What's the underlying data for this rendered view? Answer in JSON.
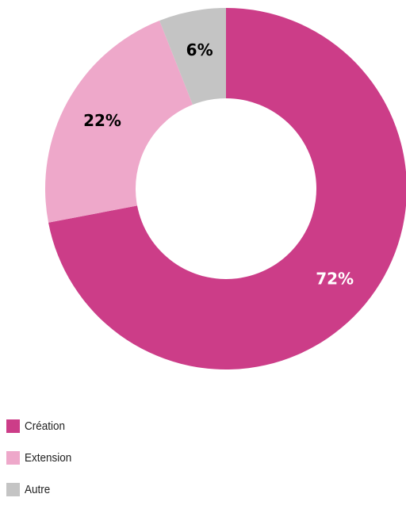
{
  "chart_data": {
    "type": "pie",
    "style": "donut",
    "categories": [
      "Création",
      "Extension",
      "Autre"
    ],
    "values": [
      72,
      22,
      6
    ],
    "value_labels": [
      "72%",
      "22%",
      "6%"
    ],
    "colors": [
      "#cc3d88",
      "#eea8ca",
      "#c4c4c4"
    ],
    "label_colors": [
      "#ffffff",
      "#000000",
      "#000000"
    ],
    "legend_position": "bottom-left",
    "start": "top, clockwise"
  }
}
